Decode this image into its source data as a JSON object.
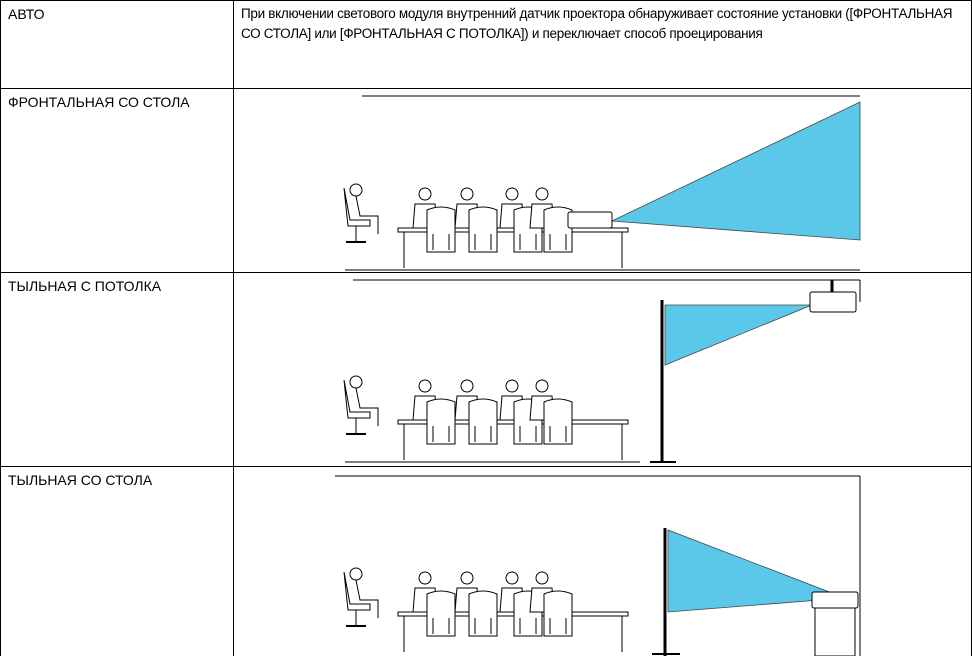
{
  "table": {
    "rows": [
      {
        "label": "АВТО",
        "description": "При включении светового модуля внутренний датчик проектора обнаруживает состояние установки ([ФРОНТАЛЬНАЯ СО СТОЛА] или [ФРОНТАЛЬНАЯ С ПОТОЛКА]) и переключает способ проецирования"
      },
      {
        "label": "ФРОНТАЛЬНАЯ СО СТОЛА"
      },
      {
        "label": "ТЫЛЬНАЯ С ПОТОЛКА"
      },
      {
        "label": "ТЫЛЬНАЯ СО СТОЛА"
      }
    ]
  }
}
